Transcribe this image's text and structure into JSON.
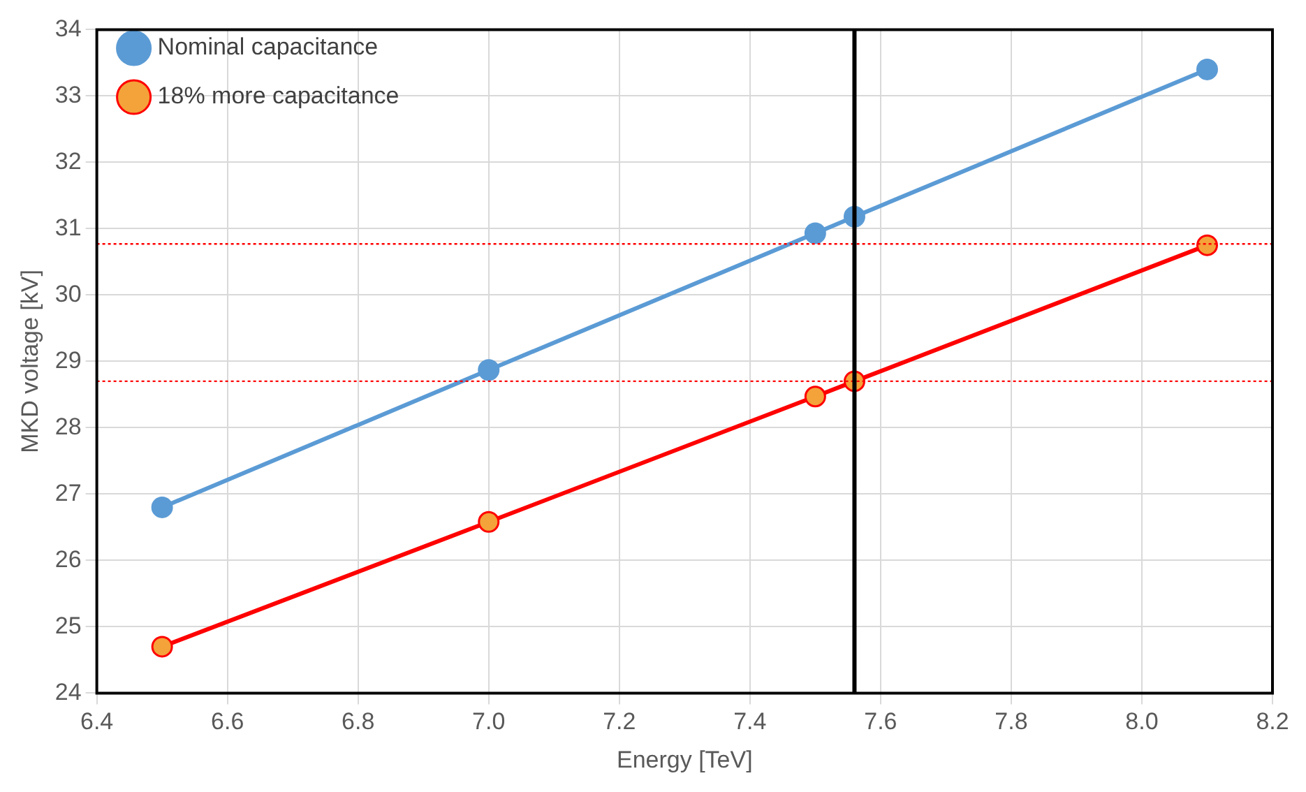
{
  "chart_data": {
    "type": "line",
    "xlabel": "Energy [TeV]",
    "ylabel": "MKD voltage [kV]",
    "xlim": [
      6.4,
      8.2
    ],
    "xticks": [
      6.4,
      6.6,
      6.8,
      {
        "value": 7.0,
        "label": "7.0"
      },
      7.2,
      7.4,
      7.6,
      7.8,
      {
        "value": 8.0,
        "label": "8.0"
      },
      8.2
    ],
    "ylim": [
      24,
      34
    ],
    "yticks": [
      24,
      25,
      26,
      27,
      28,
      29,
      30,
      31,
      32,
      33,
      34
    ],
    "x": [
      6.5,
      7.0,
      7.5,
      7.56,
      8.1
    ],
    "series": [
      {
        "name": "Nominal capacitance",
        "color": "#5b9bd5",
        "values": [
          26.8,
          28.87,
          30.93,
          31.18,
          33.4
        ]
      },
      {
        "name": "18% more capacitance",
        "color": "#ff0000",
        "values": [
          24.7,
          26.58,
          28.47,
          28.7,
          30.75
        ]
      }
    ],
    "ref_lines": [
      {
        "axis": "y",
        "value": 30.77,
        "color": "#ff0000",
        "line_style": "dotted"
      },
      {
        "axis": "y",
        "value": 28.7,
        "color": "#ff0000",
        "line_style": "dotted"
      },
      {
        "axis": "x",
        "value": 7.56,
        "color": "#000000",
        "line_style": "solid"
      }
    ],
    "grid": true,
    "legend": "top left",
    "marker": "circle",
    "line_style": "solid"
  }
}
